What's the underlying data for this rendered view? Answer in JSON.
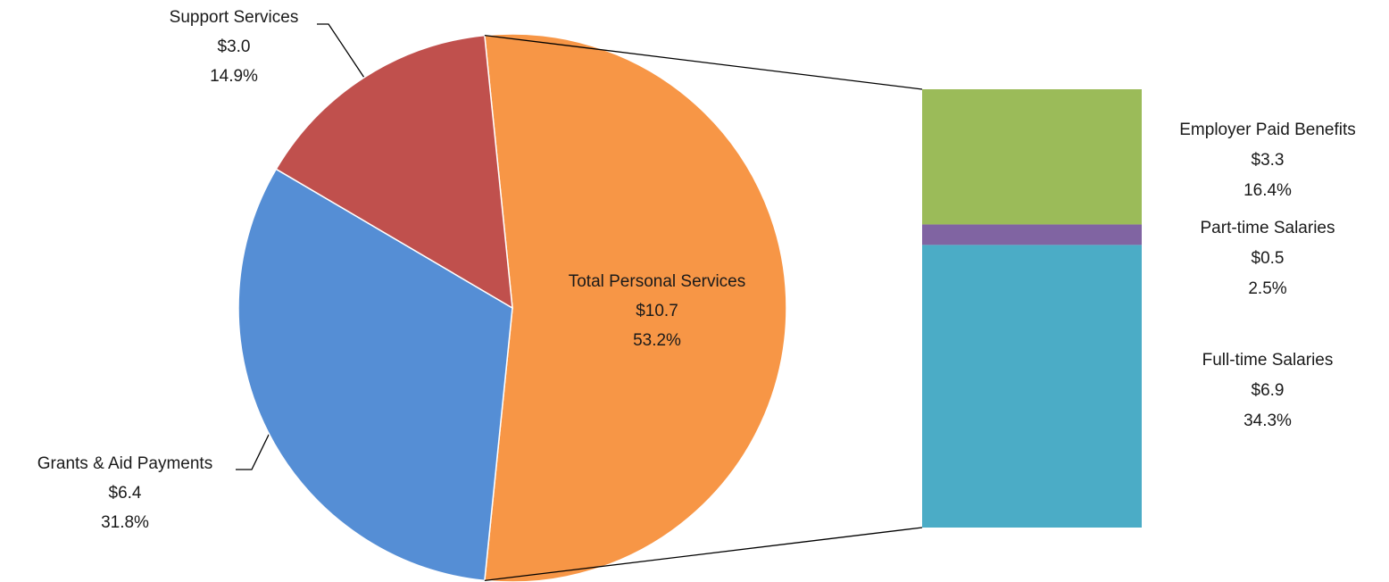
{
  "chart_data": {
    "type": "pie-of-bar",
    "categories": [
      "Total Personal Services",
      "Grants & Aid Payments",
      "Support Services"
    ],
    "values": [
      10.7,
      6.4,
      3.0
    ],
    "value_labels": [
      "$10.7",
      "$6.4",
      "$3.0"
    ],
    "percents": [
      53.2,
      31.8,
      14.9
    ],
    "percent_labels": [
      "53.2%",
      "31.8%",
      "14.9%"
    ],
    "colors": [
      "#F79646",
      "#558ED5",
      "#C0504D"
    ],
    "detail_slice": 0,
    "bar": {
      "categories": [
        "Full-time Salaries",
        "Part-time Salaries",
        "Employer Paid Benefits"
      ],
      "values": [
        6.9,
        0.5,
        3.3
      ],
      "value_labels": [
        "$6.9",
        "$0.5",
        "$3.3"
      ],
      "percents": [
        34.3,
        2.5,
        16.4
      ],
      "percent_labels": [
        "34.3%",
        "2.5%",
        "16.4%"
      ],
      "colors": [
        "#4BACC6",
        "#8064A2",
        "#9BBB59"
      ]
    }
  }
}
